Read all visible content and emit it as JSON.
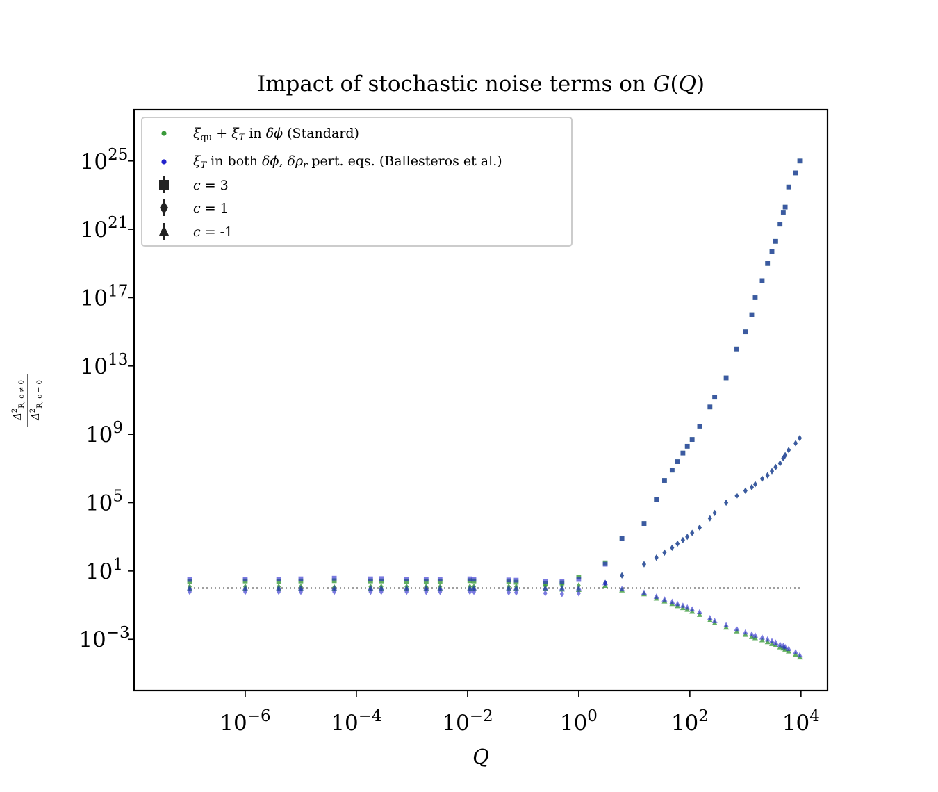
{
  "chart_data": {
    "type": "scatter",
    "title": "Impact of stochastic noise terms on G(Q)",
    "xlabel": "Q",
    "ylabel": "Δ²_{R,c≠0} / Δ²_{R,c=0}",
    "x_scale": "log",
    "y_scale": "log",
    "xlim": [
      1e-08,
      30000.0
    ],
    "ylim": [
      1e-06,
      1e+28
    ],
    "x_ticks": [
      "10^-6",
      "10^-4",
      "10^-2",
      "10^0",
      "10^2",
      "10^4"
    ],
    "x_tick_values": [
      1e-06,
      0.0001,
      0.01,
      1,
      100,
      10000
    ],
    "y_ticks": [
      "10^-3",
      "10^1",
      "10^5",
      "10^9",
      "10^13",
      "10^17",
      "10^21",
      "10^25"
    ],
    "y_tick_values": [
      0.001,
      10,
      100000.0,
      1000000000.0,
      10000000000000.0,
      1e+17,
      1e+21,
      1e+25
    ],
    "reference_line": {
      "y": 1,
      "style": "dotted",
      "color": "#000000"
    },
    "legend": {
      "placement": "top-left",
      "entries": [
        {
          "label": "ξ_qu + ξ_T in δφ (Standard)",
          "marker": "circle",
          "color": "#3a9a3a"
        },
        {
          "label": "ξ_T in both δφ, δρ_r pert. eqs. (Ballesteros et al.)",
          "marker": "circle",
          "color": "#2222cc"
        },
        {
          "label": "c = 3",
          "marker": "square",
          "color": "#222222"
        },
        {
          "label": "c = 1",
          "marker": "diamond",
          "color": "#222222"
        },
        {
          "label": "c = -1",
          "marker": "triangle",
          "color": "#222222"
        }
      ]
    },
    "series_styles": {
      "standard": {
        "color": "#3a9a3a",
        "alpha": 0.8
      },
      "ballesteros": {
        "color": "#2222cc",
        "alpha": 0.6
      }
    },
    "x_low": [
      1e-07,
      1e-06,
      4e-06,
      1e-05,
      4e-05,
      0.00018,
      0.00028,
      0.0008,
      0.0018,
      0.0032,
      0.011,
      0.013,
      0.055,
      0.075,
      0.25,
      0.5,
      1
    ],
    "x_high": [
      3,
      6,
      15,
      25,
      35,
      48,
      60,
      75,
      90,
      110,
      150,
      230,
      280,
      450,
      700,
      1000,
      1300,
      1500,
      2000,
      2500,
      3000,
      3500,
      4200,
      4800,
      5200,
      6000,
      8000,
      9500
    ],
    "series": [
      {
        "name": "c = 3",
        "marker": "square",
        "variant": "Standard",
        "y_low": [
          2.5,
          2.6,
          2.5,
          2.6,
          2.7,
          2.6,
          2.6,
          2.5,
          2.5,
          2.5,
          2.7,
          2.6,
          2.3,
          2.2,
          1.8,
          2.0,
          4.5
        ],
        "y_high": [
          30,
          800,
          6000,
          150000.0,
          2000000.0,
          8000000.0,
          25000000.0,
          80000000.0,
          200000000.0,
          500000000.0,
          3000000000.0,
          40000000000.0,
          150000000000.0,
          2000000000000.0,
          100000000000000.0,
          1000000000000000.0,
          1e+16,
          1e+17,
          1e+18,
          1e+19,
          5e+19,
          2e+20,
          2e+21,
          1e+22,
          2e+22,
          3e+23,
          2e+24,
          1e+25
        ]
      },
      {
        "name": "c = 1",
        "marker": "diamond",
        "variant": "Standard",
        "y_low": [
          1.2,
          1.2,
          1.2,
          1.2,
          1.1,
          1.2,
          1.2,
          1.2,
          1.2,
          1.2,
          1.2,
          1.2,
          1.2,
          1.2,
          1.3,
          1.3,
          1.4
        ],
        "y_high": [
          2.0,
          5.5,
          25,
          60,
          120,
          230,
          400,
          650,
          1000,
          1700,
          3500,
          12000.0,
          25000.0,
          100000.0,
          250000.0,
          500000.0,
          800000.0,
          1200000.0,
          2500000.0,
          4000000.0,
          7000000.0,
          12000000.0,
          20000000.0,
          40000000.0,
          60000000.0,
          120000000.0,
          300000000.0,
          600000000.0
        ]
      },
      {
        "name": "c = -1",
        "marker": "triangle",
        "variant": "Standard",
        "y_low": [
          0.9,
          0.9,
          0.9,
          0.9,
          0.9,
          0.9,
          0.9,
          0.9,
          0.9,
          0.9,
          0.9,
          0.9,
          0.9,
          0.9,
          0.9,
          0.85,
          0.8
        ],
        "y_high": [
          1.4,
          0.75,
          0.45,
          0.25,
          0.17,
          0.12,
          0.09,
          0.07,
          0.055,
          0.042,
          0.028,
          0.013,
          0.009,
          0.005,
          0.003,
          0.0019,
          0.0014,
          0.0012,
          0.0009,
          0.0007,
          0.00055,
          0.00045,
          0.00035,
          0.0003,
          0.00026,
          0.0002,
          0.00013,
          9e-05
        ]
      },
      {
        "name": "c = 3",
        "marker": "square",
        "variant": "Ballesteros et al.",
        "y_low": [
          3.2,
          3.3,
          3.4,
          3.5,
          3.8,
          3.5,
          3.6,
          3.4,
          3.3,
          3.4,
          3.5,
          3.3,
          3.0,
          2.9,
          2.5,
          2.4,
          3.2
        ],
        "y_high": [
          25,
          800,
          6000,
          150000.0,
          2000000.0,
          8000000.0,
          25000000.0,
          80000000.0,
          200000000.0,
          500000000.0,
          3000000000.0,
          40000000000.0,
          150000000000.0,
          2000000000000.0,
          100000000000000.0,
          1000000000000000.0,
          1e+16,
          1e+17,
          1e+18,
          1e+19,
          5e+19,
          2e+20,
          2e+21,
          1e+22,
          2e+22,
          3e+23,
          2e+24,
          1e+25
        ]
      },
      {
        "name": "c = 1",
        "marker": "diamond",
        "variant": "Ballesteros et al.",
        "y_low": [
          0.6,
          0.6,
          0.6,
          0.6,
          0.6,
          0.6,
          0.6,
          0.6,
          0.6,
          0.6,
          0.6,
          0.6,
          0.55,
          0.55,
          0.5,
          0.45,
          0.5
        ],
        "y_high": [
          2.0,
          5.5,
          25,
          60,
          120,
          230,
          400,
          650,
          1000,
          1700,
          3500,
          12000.0,
          25000.0,
          100000.0,
          250000.0,
          500000.0,
          800000.0,
          1200000.0,
          2500000.0,
          4000000.0,
          7000000.0,
          12000000.0,
          20000000.0,
          40000000.0,
          60000000.0,
          120000000.0,
          300000000.0,
          600000000.0
        ]
      },
      {
        "name": "c = -1",
        "marker": "triangle",
        "variant": "Ballesteros et al.",
        "y_low": [
          1.0,
          1.0,
          1.0,
          1.0,
          1.0,
          1.0,
          1.0,
          1.0,
          1.0,
          1.0,
          1.0,
          1.0,
          1.0,
          1.0,
          1.0,
          1.0,
          1.0
        ],
        "y_high": [
          2.0,
          0.9,
          0.55,
          0.32,
          0.22,
          0.16,
          0.12,
          0.095,
          0.075,
          0.058,
          0.04,
          0.018,
          0.012,
          0.0068,
          0.0042,
          0.0026,
          0.002,
          0.0017,
          0.0013,
          0.001,
          0.0008,
          0.00065,
          0.0005,
          0.00042,
          0.00036,
          0.00028,
          0.00018,
          0.00012
        ]
      }
    ]
  }
}
